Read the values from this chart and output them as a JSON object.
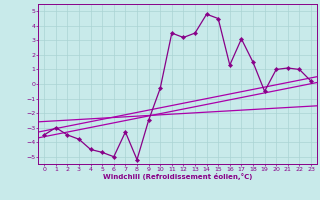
{
  "x": [
    0,
    1,
    2,
    3,
    4,
    5,
    6,
    7,
    8,
    9,
    10,
    11,
    12,
    13,
    14,
    15,
    16,
    17,
    18,
    19,
    20,
    21,
    22,
    23
  ],
  "y_main": [
    -3.5,
    -3.0,
    -3.5,
    -3.8,
    -4.5,
    -4.7,
    -5.0,
    -3.3,
    -5.2,
    -2.5,
    -0.3,
    3.5,
    3.2,
    3.5,
    4.8,
    4.5,
    1.3,
    3.1,
    1.5,
    -0.5,
    1.0,
    1.1,
    1.0,
    0.2
  ],
  "bg_color": "#c8eaea",
  "grid_color": "#aad4d4",
  "line_color": "#880088",
  "marker_color": "#880088",
  "xlabel": "Windchill (Refroidissement éolien,°C)",
  "xlim": [
    -0.5,
    23.5
  ],
  "ylim": [
    -5.5,
    5.5
  ],
  "yticks": [
    -5,
    -4,
    -3,
    -2,
    -1,
    0,
    1,
    2,
    3,
    4,
    5
  ],
  "xticks": [
    0,
    1,
    2,
    3,
    4,
    5,
    6,
    7,
    8,
    9,
    10,
    11,
    12,
    13,
    14,
    15,
    16,
    17,
    18,
    19,
    20,
    21,
    22,
    23
  ],
  "reg_color": "#aa00aa",
  "reg_lines": [
    {
      "x0": -0.5,
      "y0": -3.7,
      "x1": 23.5,
      "y1": 0.1
    },
    {
      "x0": -0.5,
      "y0": -3.3,
      "x1": 23.5,
      "y1": 0.5
    },
    {
      "x0": -0.5,
      "y0": -2.6,
      "x1": 23.5,
      "y1": -1.5
    }
  ]
}
